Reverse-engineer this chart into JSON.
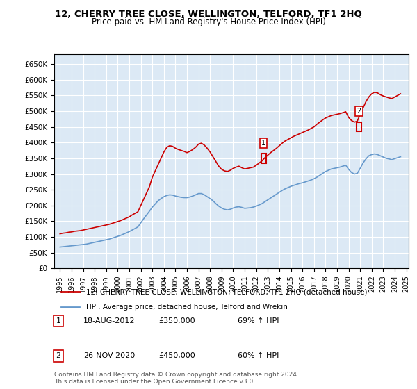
{
  "title": "12, CHERRY TREE CLOSE, WELLINGTON, TELFORD, TF1 2HQ",
  "subtitle": "Price paid vs. HM Land Registry's House Price Index (HPI)",
  "xlabel": "",
  "ylabel": "",
  "ylim": [
    0,
    680000
  ],
  "yticks": [
    0,
    50000,
    100000,
    150000,
    200000,
    250000,
    300000,
    350000,
    400000,
    450000,
    500000,
    550000,
    600000,
    650000
  ],
  "background_color": "#dce9f5",
  "plot_bg_color": "#dce9f5",
  "grid_color": "#ffffff",
  "red_line_color": "#cc0000",
  "blue_line_color": "#6699cc",
  "marker1_year": 2012.63,
  "marker1_value": 350000,
  "marker2_year": 2020.9,
  "marker2_value": 450000,
  "annotation1_label": "1",
  "annotation2_label": "2",
  "legend_red_label": "12, CHERRY TREE CLOSE, WELLINGTON, TELFORD, TF1 2HQ (detached house)",
  "legend_blue_label": "HPI: Average price, detached house, Telford and Wrekin",
  "footer": "Contains HM Land Registry data © Crown copyright and database right 2024.\nThis data is licensed under the Open Government Licence v3.0.",
  "table_rows": [
    {
      "num": "1",
      "date": "18-AUG-2012",
      "price": "£350,000",
      "hpi": "69% ↑ HPI"
    },
    {
      "num": "2",
      "date": "26-NOV-2020",
      "price": "£450,000",
      "hpi": "60% ↑ HPI"
    }
  ],
  "red_x": [
    1995.0,
    1995.25,
    1995.5,
    1995.75,
    1996.0,
    1996.25,
    1996.5,
    1996.75,
    1997.0,
    1997.25,
    1997.5,
    1997.75,
    1998.0,
    1998.25,
    1998.5,
    1998.75,
    1999.0,
    1999.25,
    1999.5,
    1999.75,
    2000.0,
    2000.25,
    2000.5,
    2000.75,
    2001.0,
    2001.25,
    2001.5,
    2001.75,
    2002.0,
    2002.25,
    2002.5,
    2002.75,
    2003.0,
    2003.25,
    2003.5,
    2003.75,
    2004.0,
    2004.25,
    2004.5,
    2004.75,
    2005.0,
    2005.25,
    2005.5,
    2005.75,
    2006.0,
    2006.25,
    2006.5,
    2006.75,
    2007.0,
    2007.25,
    2007.5,
    2007.75,
    2008.0,
    2008.25,
    2008.5,
    2008.75,
    2009.0,
    2009.25,
    2009.5,
    2009.75,
    2010.0,
    2010.25,
    2010.5,
    2010.75,
    2011.0,
    2011.25,
    2011.5,
    2011.75,
    2012.0,
    2012.25,
    2012.5,
    2012.75,
    2013.0,
    2013.25,
    2013.5,
    2013.75,
    2014.0,
    2014.25,
    2014.5,
    2014.75,
    2015.0,
    2015.25,
    2015.5,
    2015.75,
    2016.0,
    2016.25,
    2016.5,
    2016.75,
    2017.0,
    2017.25,
    2017.5,
    2017.75,
    2018.0,
    2018.25,
    2018.5,
    2018.75,
    2019.0,
    2019.25,
    2019.5,
    2019.75,
    2020.0,
    2020.25,
    2020.5,
    2020.75,
    2021.0,
    2021.25,
    2021.5,
    2021.75,
    2022.0,
    2022.25,
    2022.5,
    2022.75,
    2023.0,
    2023.25,
    2023.5,
    2023.75,
    2024.0,
    2024.25,
    2024.5
  ],
  "red_y": [
    110000,
    112000,
    113000,
    115000,
    116000,
    118000,
    119000,
    120000,
    122000,
    124000,
    126000,
    128000,
    130000,
    132000,
    134000,
    136000,
    138000,
    140000,
    143000,
    146000,
    149000,
    152000,
    156000,
    160000,
    164000,
    170000,
    175000,
    180000,
    200000,
    220000,
    240000,
    260000,
    290000,
    310000,
    330000,
    350000,
    370000,
    385000,
    390000,
    388000,
    382000,
    378000,
    375000,
    372000,
    368000,
    372000,
    378000,
    385000,
    395000,
    398000,
    392000,
    382000,
    370000,
    355000,
    340000,
    325000,
    315000,
    310000,
    308000,
    312000,
    318000,
    322000,
    325000,
    320000,
    316000,
    318000,
    320000,
    322000,
    328000,
    335000,
    342000,
    352000,
    360000,
    368000,
    375000,
    382000,
    390000,
    398000,
    405000,
    410000,
    415000,
    420000,
    424000,
    428000,
    432000,
    436000,
    440000,
    445000,
    450000,
    458000,
    465000,
    472000,
    478000,
    482000,
    486000,
    488000,
    490000,
    492000,
    495000,
    498000,
    480000,
    470000,
    465000,
    468000,
    490000,
    510000,
    530000,
    545000,
    555000,
    560000,
    558000,
    552000,
    548000,
    545000,
    542000,
    540000,
    545000,
    550000,
    555000
  ],
  "blue_x": [
    1995.0,
    1995.25,
    1995.5,
    1995.75,
    1996.0,
    1996.25,
    1996.5,
    1996.75,
    1997.0,
    1997.25,
    1997.5,
    1997.75,
    1998.0,
    1998.25,
    1998.5,
    1998.75,
    1999.0,
    1999.25,
    1999.5,
    1999.75,
    2000.0,
    2000.25,
    2000.5,
    2000.75,
    2001.0,
    2001.25,
    2001.5,
    2001.75,
    2002.0,
    2002.25,
    2002.5,
    2002.75,
    2003.0,
    2003.25,
    2003.5,
    2003.75,
    2004.0,
    2004.25,
    2004.5,
    2004.75,
    2005.0,
    2005.25,
    2005.5,
    2005.75,
    2006.0,
    2006.25,
    2006.5,
    2006.75,
    2007.0,
    2007.25,
    2007.5,
    2007.75,
    2008.0,
    2008.25,
    2008.5,
    2008.75,
    2009.0,
    2009.25,
    2009.5,
    2009.75,
    2010.0,
    2010.25,
    2010.5,
    2010.75,
    2011.0,
    2011.25,
    2011.5,
    2011.75,
    2012.0,
    2012.25,
    2012.5,
    2012.75,
    2013.0,
    2013.25,
    2013.5,
    2013.75,
    2014.0,
    2014.25,
    2014.5,
    2014.75,
    2015.0,
    2015.25,
    2015.5,
    2015.75,
    2016.0,
    2016.25,
    2016.5,
    2016.75,
    2017.0,
    2017.25,
    2017.5,
    2017.75,
    2018.0,
    2018.25,
    2018.5,
    2018.75,
    2019.0,
    2019.25,
    2019.5,
    2019.75,
    2020.0,
    2020.25,
    2020.5,
    2020.75,
    2021.0,
    2021.25,
    2021.5,
    2021.75,
    2022.0,
    2022.25,
    2022.5,
    2022.75,
    2023.0,
    2023.25,
    2023.5,
    2023.75,
    2024.0,
    2024.25,
    2024.5
  ],
  "blue_y": [
    68000,
    69000,
    70000,
    71000,
    72000,
    73000,
    74000,
    75000,
    76000,
    77000,
    79000,
    81000,
    83000,
    85000,
    87000,
    89000,
    91000,
    93000,
    96000,
    99000,
    102000,
    105000,
    109000,
    113000,
    117000,
    122000,
    127000,
    132000,
    145000,
    158000,
    170000,
    182000,
    195000,
    205000,
    215000,
    222000,
    228000,
    232000,
    234000,
    233000,
    230000,
    228000,
    226000,
    225000,
    225000,
    227000,
    230000,
    234000,
    238000,
    238000,
    234000,
    228000,
    222000,
    215000,
    206000,
    198000,
    192000,
    188000,
    186000,
    188000,
    192000,
    195000,
    196000,
    194000,
    191000,
    192000,
    193000,
    195000,
    198000,
    202000,
    206000,
    212000,
    218000,
    224000,
    230000,
    236000,
    242000,
    248000,
    253000,
    257000,
    261000,
    264000,
    267000,
    270000,
    272000,
    275000,
    278000,
    281000,
    285000,
    290000,
    296000,
    302000,
    308000,
    312000,
    316000,
    318000,
    320000,
    322000,
    325000,
    328000,
    315000,
    305000,
    300000,
    302000,
    318000,
    335000,
    348000,
    358000,
    362000,
    364000,
    362000,
    358000,
    354000,
    350000,
    348000,
    346000,
    349000,
    352000,
    355000
  ]
}
